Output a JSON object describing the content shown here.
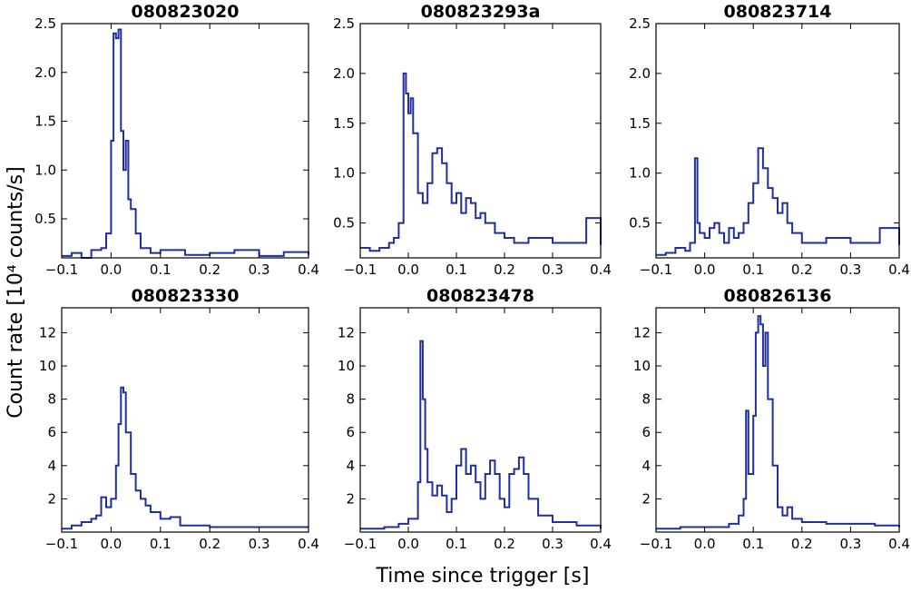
{
  "figure": {
    "ylabel": "Count rate [10⁴ counts/s]",
    "xlabel": "Time since trigger [s]",
    "line_color": "#1f2ea0"
  },
  "chart_data": [
    {
      "type": "line",
      "title": "080823020",
      "xlim": [
        -0.1,
        0.4
      ],
      "ylim": [
        0.1,
        2.5
      ],
      "xticks": [
        -0.1,
        0.0,
        0.1,
        0.2,
        0.3,
        0.4
      ],
      "xtick_labels": [
        "−0.1",
        "0.0",
        "0.1",
        "0.2",
        "0.3",
        "0.4"
      ],
      "yticks": [
        0.5,
        1.0,
        1.5,
        2.0,
        2.5
      ],
      "ytick_labels": [
        "0.5",
        "1.0",
        "1.5",
        "2.0",
        "2.5"
      ],
      "x": [
        -0.1,
        -0.08,
        -0.06,
        -0.04,
        -0.02,
        -0.01,
        0.0,
        0.005,
        0.01,
        0.015,
        0.02,
        0.025,
        0.03,
        0.035,
        0.04,
        0.05,
        0.06,
        0.08,
        0.1,
        0.15,
        0.2,
        0.25,
        0.3,
        0.35,
        0.4
      ],
      "y": [
        0.12,
        0.15,
        0.1,
        0.18,
        0.2,
        0.35,
        1.3,
        2.4,
        2.35,
        2.44,
        1.4,
        1.0,
        1.3,
        0.7,
        0.6,
        0.35,
        0.2,
        0.15,
        0.18,
        0.13,
        0.15,
        0.18,
        0.12,
        0.16,
        0.13
      ]
    },
    {
      "type": "line",
      "title": "080823293a",
      "xlim": [
        -0.1,
        0.4
      ],
      "ylim": [
        0.15,
        2.5
      ],
      "xticks": [
        -0.1,
        0.0,
        0.1,
        0.2,
        0.3,
        0.4
      ],
      "xtick_labels": [
        "−0.1",
        "0.0",
        "0.1",
        "0.2",
        "0.3",
        "0.4"
      ],
      "yticks": [
        0.5,
        1.0,
        1.5,
        2.0,
        2.5
      ],
      "ytick_labels": [
        "0.5",
        "1.0",
        "1.5",
        "2.0",
        "2.5"
      ],
      "x": [
        -0.1,
        -0.08,
        -0.06,
        -0.04,
        -0.03,
        -0.02,
        -0.01,
        -0.005,
        0.0,
        0.005,
        0.01,
        0.02,
        0.03,
        0.04,
        0.05,
        0.06,
        0.07,
        0.08,
        0.09,
        0.1,
        0.11,
        0.12,
        0.13,
        0.14,
        0.15,
        0.16,
        0.18,
        0.2,
        0.22,
        0.25,
        0.3,
        0.35,
        0.37,
        0.4
      ],
      "y": [
        0.25,
        0.22,
        0.25,
        0.3,
        0.35,
        0.5,
        2.0,
        1.8,
        1.6,
        1.75,
        1.4,
        0.8,
        0.7,
        0.9,
        1.2,
        1.25,
        1.1,
        0.9,
        0.7,
        0.8,
        0.6,
        0.75,
        0.7,
        0.55,
        0.6,
        0.5,
        0.4,
        0.35,
        0.3,
        0.35,
        0.3,
        0.3,
        0.55,
        0.28
      ]
    },
    {
      "type": "line",
      "title": "080823714",
      "xlim": [
        -0.1,
        0.4
      ],
      "ylim": [
        0.15,
        2.5
      ],
      "xticks": [
        -0.1,
        0.0,
        0.1,
        0.2,
        0.3,
        0.4
      ],
      "xtick_labels": [
        "−0.1",
        "0.0",
        "0.1",
        "0.2",
        "0.3",
        "0.4"
      ],
      "yticks": [
        0.5,
        1.0,
        1.5,
        2.0,
        2.5
      ],
      "ytick_labels": [
        "0.5",
        "1.0",
        "1.5",
        "2.0",
        "2.5"
      ],
      "x": [
        -0.1,
        -0.08,
        -0.06,
        -0.04,
        -0.03,
        -0.02,
        -0.015,
        -0.01,
        0.0,
        0.01,
        0.02,
        0.03,
        0.04,
        0.05,
        0.06,
        0.07,
        0.08,
        0.09,
        0.1,
        0.11,
        0.12,
        0.13,
        0.14,
        0.15,
        0.16,
        0.17,
        0.18,
        0.2,
        0.25,
        0.3,
        0.35,
        0.36,
        0.4
      ],
      "y": [
        0.18,
        0.2,
        0.25,
        0.22,
        0.3,
        1.15,
        0.5,
        0.4,
        0.35,
        0.45,
        0.5,
        0.4,
        0.3,
        0.45,
        0.35,
        0.4,
        0.5,
        0.7,
        0.9,
        1.25,
        1.05,
        0.85,
        0.75,
        0.6,
        0.7,
        0.5,
        0.4,
        0.3,
        0.35,
        0.3,
        0.3,
        0.45,
        0.28
      ]
    },
    {
      "type": "line",
      "title": "080823330",
      "xlim": [
        -0.1,
        0.4
      ],
      "ylim": [
        0,
        13.5
      ],
      "xticks": [
        -0.1,
        0.0,
        0.1,
        0.2,
        0.3,
        0.4
      ],
      "xtick_labels": [
        "−0.1",
        "0.0",
        "0.1",
        "0.2",
        "0.3",
        "0.4"
      ],
      "yticks": [
        2,
        4,
        6,
        8,
        10,
        12
      ],
      "ytick_labels": [
        "2",
        "4",
        "6",
        "8",
        "10",
        "12"
      ],
      "x": [
        -0.1,
        -0.08,
        -0.06,
        -0.04,
        -0.03,
        -0.02,
        -0.01,
        0.0,
        0.01,
        0.015,
        0.02,
        0.025,
        0.03,
        0.04,
        0.05,
        0.06,
        0.07,
        0.08,
        0.1,
        0.12,
        0.14,
        0.2,
        0.3,
        0.4
      ],
      "y": [
        0.2,
        0.4,
        0.6,
        0.8,
        1.0,
        2.1,
        1.5,
        2.0,
        4.0,
        6.5,
        8.7,
        8.4,
        6.0,
        3.5,
        2.5,
        2.0,
        1.6,
        1.2,
        0.8,
        0.9,
        0.4,
        0.3,
        0.3,
        0.3
      ]
    },
    {
      "type": "line",
      "title": "080823478",
      "xlim": [
        -0.1,
        0.4
      ],
      "ylim": [
        0,
        13.5
      ],
      "xticks": [
        -0.1,
        0.0,
        0.1,
        0.2,
        0.3,
        0.4
      ],
      "xtick_labels": [
        "−0.1",
        "0.0",
        "0.1",
        "0.2",
        "0.3",
        "0.4"
      ],
      "yticks": [
        2,
        4,
        6,
        8,
        10,
        12
      ],
      "ytick_labels": [
        "2",
        "4",
        "6",
        "8",
        "10",
        "12"
      ],
      "x": [
        -0.1,
        -0.05,
        -0.02,
        0.0,
        0.02,
        0.025,
        0.03,
        0.035,
        0.04,
        0.05,
        0.06,
        0.07,
        0.08,
        0.09,
        0.1,
        0.11,
        0.12,
        0.13,
        0.14,
        0.15,
        0.16,
        0.17,
        0.18,
        0.19,
        0.2,
        0.21,
        0.22,
        0.23,
        0.24,
        0.25,
        0.27,
        0.3,
        0.35,
        0.4
      ],
      "y": [
        0.2,
        0.3,
        0.5,
        0.8,
        3.0,
        11.5,
        8.0,
        5.0,
        3.0,
        2.2,
        2.8,
        2.2,
        1.2,
        2.0,
        4.0,
        5.0,
        3.5,
        4.0,
        3.0,
        2.0,
        3.5,
        4.3,
        3.5,
        2.0,
        1.5,
        3.5,
        3.8,
        4.5,
        3.5,
        2.0,
        1.0,
        0.6,
        0.4,
        0.2
      ]
    },
    {
      "type": "line",
      "title": "080826136",
      "xlim": [
        -0.1,
        0.4
      ],
      "ylim": [
        0,
        13.5
      ],
      "xticks": [
        -0.1,
        0.0,
        0.1,
        0.2,
        0.3,
        0.4
      ],
      "xtick_labels": [
        "−0.1",
        "0.0",
        "0.1",
        "0.2",
        "0.3",
        "0.4"
      ],
      "yticks": [
        2,
        4,
        6,
        8,
        10,
        12
      ],
      "ytick_labels": [
        "2",
        "4",
        "6",
        "8",
        "10",
        "12"
      ],
      "x": [
        -0.1,
        -0.05,
        0.0,
        0.05,
        0.07,
        0.08,
        0.085,
        0.09,
        0.1,
        0.105,
        0.11,
        0.115,
        0.12,
        0.125,
        0.13,
        0.14,
        0.15,
        0.16,
        0.17,
        0.18,
        0.2,
        0.25,
        0.3,
        0.35,
        0.4
      ],
      "y": [
        0.2,
        0.3,
        0.3,
        0.5,
        1.0,
        2.0,
        7.3,
        3.5,
        7.0,
        12.0,
        13.0,
        12.5,
        10.0,
        12.0,
        8.0,
        4.0,
        1.5,
        1.0,
        1.5,
        0.8,
        0.6,
        0.5,
        0.5,
        0.4,
        0.3
      ]
    }
  ]
}
